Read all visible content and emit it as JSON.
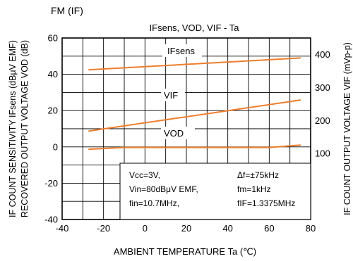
{
  "chart_data": {
    "type": "line",
    "header": "FM (IF)",
    "title": "IFsens, VOD, VIF - Ta",
    "xlabel": "AMBIENT TEMPERATURE Ta (℃)",
    "ylabel_left_line1": "IF COUNT SENSITIVITY IFsens (dBμV EMF)",
    "ylabel_left_line2": "RECOVERED OUTPUT VOLTAGE VOD (dB)",
    "ylabel_right": "IF COUNT OUTPUT VOLTAGE VIF (mVp-p)",
    "xlim": [
      -40,
      80
    ],
    "ylim": [
      -40,
      60
    ],
    "ylim_right": [
      -100,
      450
    ],
    "x_ticks": [
      "-40",
      "-20",
      "0",
      "20",
      "40",
      "60",
      "80"
    ],
    "y_ticks": [
      "-40",
      "-20",
      "0",
      "20",
      "40",
      "60"
    ],
    "y_right_ticks": [
      "100",
      "200",
      "300",
      "400"
    ],
    "grid": true,
    "line_color": "#ee7d2b",
    "series": [
      {
        "name": "IFsens",
        "axis": "left",
        "x": [
          -27,
          75
        ],
        "values": [
          42.5,
          49
        ]
      },
      {
        "name": "VIF",
        "axis": "right",
        "x": [
          -27,
          75
        ],
        "values": [
          168,
          262
        ]
      },
      {
        "name": "VOD",
        "axis": "left",
        "x": [
          -27,
          -10,
          60,
          75
        ],
        "values": [
          -1.3,
          -0.3,
          -0.3,
          1.0
        ]
      }
    ],
    "series_labels": {
      "IFsens": "IFsens",
      "VIF": "VIF",
      "VOD": "VOD"
    },
    "conditions": [
      [
        "Vcc=3V,",
        "Δf=±75kHz"
      ],
      [
        "Vin=80dBμV EMF,",
        "fm=1kHz"
      ],
      [
        "fin=10.7MHz,",
        "fIF=1.3375MHz"
      ]
    ]
  }
}
